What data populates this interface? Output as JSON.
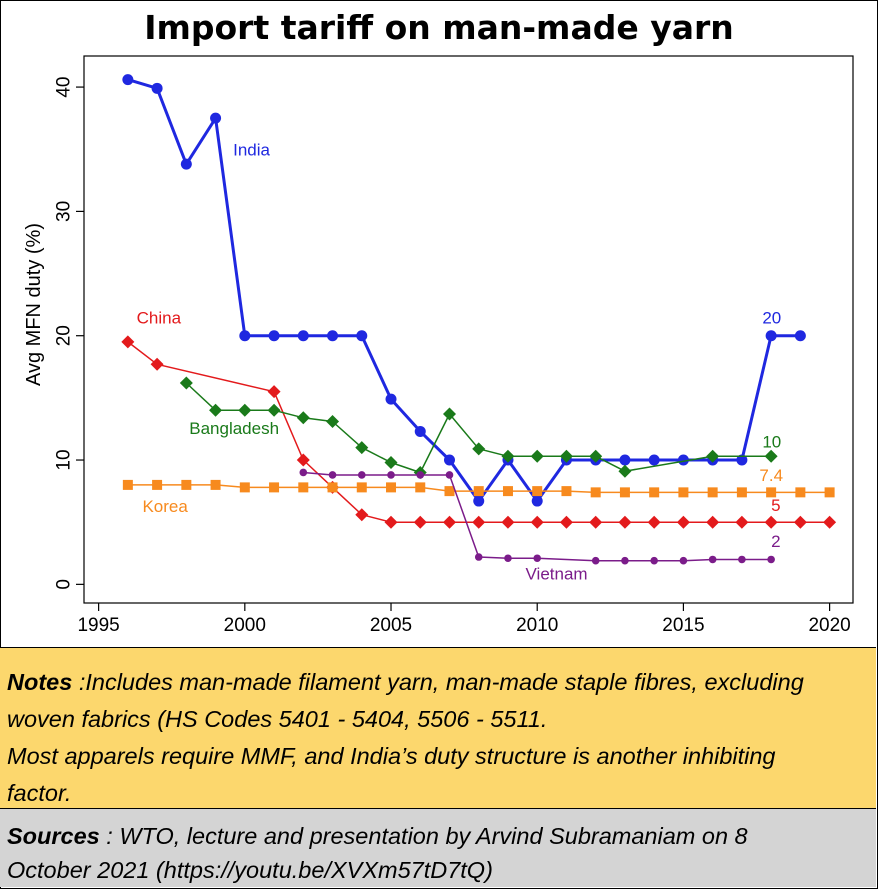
{
  "title": "Import tariff on man-made yarn",
  "chart_data": {
    "type": "line",
    "title": "Import tariff on man-made yarn",
    "xlabel": "",
    "ylabel": "Avg MFN duty (%)",
    "xlim": [
      1994.5,
      2020.8
    ],
    "ylim": [
      -1.5,
      42.5
    ],
    "xticks": [
      1995,
      2000,
      2005,
      2010,
      2015,
      2020
    ],
    "yticks": [
      0,
      10,
      20,
      30,
      40
    ],
    "grid": false,
    "legend": "none",
    "series": [
      {
        "name": "India",
        "color": "#1f28e0",
        "marker": "circle",
        "width": 3,
        "x": [
          1996,
          1997,
          1998,
          1999,
          2000,
          2001,
          2002,
          2003,
          2004,
          2005,
          2006,
          2007,
          2008,
          2009,
          2010,
          2011,
          2012,
          2013,
          2014,
          2015,
          2016,
          2017,
          2018,
          2019
        ],
        "y": [
          40.6,
          39.9,
          33.8,
          37.5,
          20,
          20,
          20,
          20,
          20,
          14.9,
          12.3,
          10,
          6.7,
          10,
          6.7,
          10,
          10,
          10,
          10,
          10,
          10,
          10,
          20,
          20
        ]
      },
      {
        "name": "China",
        "color": "#e31a1c",
        "marker": "diamond",
        "width": 1.5,
        "x": [
          1996,
          1997,
          2001,
          2002,
          2003,
          2004,
          2005,
          2006,
          2007,
          2008,
          2009,
          2010,
          2011,
          2012,
          2013,
          2014,
          2015,
          2016,
          2017,
          2018,
          2019,
          2020
        ],
        "y": [
          19.5,
          17.7,
          15.5,
          10,
          7.8,
          5.6,
          5,
          5,
          5,
          5,
          5,
          5,
          5,
          5,
          5,
          5,
          5,
          5,
          5,
          5,
          5,
          5
        ]
      },
      {
        "name": "Bangladesh",
        "color": "#1a7a1a",
        "marker": "diamond",
        "width": 1.5,
        "x": [
          1998,
          1999,
          2000,
          2001,
          2002,
          2003,
          2004,
          2005,
          2006,
          2007,
          2008,
          2009,
          2010,
          2011,
          2012,
          2013,
          2016,
          2018
        ],
        "y": [
          16.2,
          14,
          14,
          14,
          13.4,
          13.1,
          11,
          9.8,
          9,
          13.7,
          10.9,
          10.3,
          10.3,
          10.3,
          10.3,
          9.1,
          10.3,
          10.3
        ]
      },
      {
        "name": "Korea",
        "color": "#f78a1e",
        "marker": "square",
        "width": 1.5,
        "x": [
          1996,
          1997,
          1998,
          1999,
          2000,
          2001,
          2002,
          2003,
          2004,
          2005,
          2006,
          2007,
          2008,
          2009,
          2010,
          2011,
          2012,
          2013,
          2014,
          2015,
          2016,
          2017,
          2018,
          2019,
          2020
        ],
        "y": [
          8,
          8,
          8,
          8,
          7.8,
          7.8,
          7.8,
          7.8,
          7.8,
          7.8,
          7.8,
          7.5,
          7.5,
          7.5,
          7.5,
          7.5,
          7.4,
          7.4,
          7.4,
          7.4,
          7.4,
          7.4,
          7.4,
          7.4,
          7.4
        ]
      },
      {
        "name": "Vietnam",
        "color": "#7b1c8a",
        "marker": "circle",
        "width": 1.5,
        "x": [
          2002,
          2003,
          2004,
          2005,
          2006,
          2007,
          2008,
          2009,
          2010,
          2012,
          2013,
          2014,
          2015,
          2016,
          2017,
          2018
        ],
        "y": [
          9,
          8.8,
          8.8,
          8.8,
          8.8,
          8.8,
          2.2,
          2.1,
          2.1,
          1.9,
          1.9,
          1.9,
          1.9,
          2,
          2,
          2
        ]
      }
    ],
    "annotations": [
      {
        "text": "India",
        "x": 1999.6,
        "y": 34.5,
        "color": "#1f28e0"
      },
      {
        "text": "China",
        "x": 1996.3,
        "y": 21.0,
        "color": "#e31a1c"
      },
      {
        "text": "Bangladesh",
        "x": 1998.1,
        "y": 12.1,
        "color": "#1a7a1a"
      },
      {
        "text": "Korea",
        "x": 1996.5,
        "y": 5.8,
        "color": "#f78a1e"
      },
      {
        "text": "Vietnam",
        "x": 2009.6,
        "y": 0.4,
        "color": "#7b1c8a"
      },
      {
        "text": "20",
        "x": 2017.7,
        "y": 21.0,
        "color": "#1f28e0"
      },
      {
        "text": "10",
        "x": 2017.7,
        "y": 11.0,
        "color": "#1a7a1a"
      },
      {
        "text": "7.4",
        "x": 2017.6,
        "y": 8.3,
        "color": "#f78a1e"
      },
      {
        "text": "5",
        "x": 2018.0,
        "y": 5.9,
        "color": "#e31a1c"
      },
      {
        "text": "2",
        "x": 2018.0,
        "y": 3.0,
        "color": "#7b1c8a"
      }
    ]
  },
  "notes": {
    "label": "Notes",
    "lines": [
      " :Includes man-made filament yarn, man-made staple fibres, excluding",
      "woven fabrics (HS Codes 5401 - 5404, 5506 - 5511.",
      "Most apparels require MMF, and India’s duty structure is another inhibiting",
      "factor."
    ]
  },
  "sources": {
    "label": "Sources",
    "lines": [
      " : WTO, lecture and presentation by Arvind Subramaniam on 8",
      "October 2021 (https://youtu.be/XVXm57tD7tQ)"
    ]
  }
}
